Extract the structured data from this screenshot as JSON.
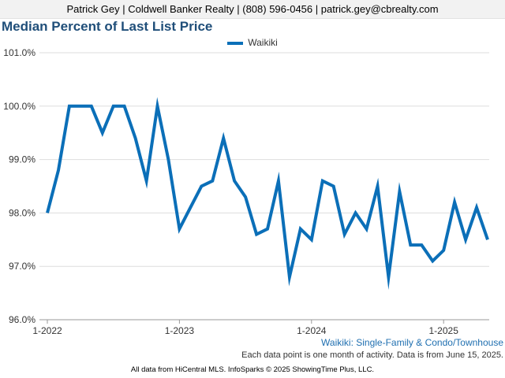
{
  "header": {
    "contact": "Patrick Gey | Coldwell Banker Realty | (808) 596-0456 | patrick.gey@cbrealty.com"
  },
  "chart_data": {
    "type": "line",
    "title": "Median Percent of Last List Price",
    "subtitle": "Waikiki: Single-Family & Condo/Townhouse",
    "xlabel": "",
    "ylabel": "",
    "ylim": [
      96.0,
      101.0
    ],
    "y_ticks": [
      "96.0%",
      "97.0%",
      "98.0%",
      "99.0%",
      "100.0%",
      "101.0%"
    ],
    "x_ticks": [
      "1-2022",
      "1-2023",
      "1-2024",
      "1-2025"
    ],
    "x": [
      "1-2022",
      "2-2022",
      "3-2022",
      "4-2022",
      "5-2022",
      "6-2022",
      "7-2022",
      "8-2022",
      "9-2022",
      "10-2022",
      "11-2022",
      "12-2022",
      "1-2023",
      "2-2023",
      "3-2023",
      "4-2023",
      "5-2023",
      "6-2023",
      "7-2023",
      "8-2023",
      "9-2023",
      "10-2023",
      "11-2023",
      "12-2023",
      "1-2024",
      "2-2024",
      "3-2024",
      "4-2024",
      "5-2024",
      "6-2024",
      "7-2024",
      "8-2024",
      "9-2024",
      "10-2024",
      "11-2024",
      "12-2024",
      "1-2025",
      "2-2025",
      "3-2025",
      "4-2025",
      "5-2025"
    ],
    "series": [
      {
        "name": "Waikiki",
        "color": "#0b6fb8",
        "values": [
          98.0,
          98.8,
          100.0,
          100.0,
          100.0,
          99.5,
          100.0,
          100.0,
          99.4,
          98.6,
          100.0,
          99.0,
          97.7,
          98.1,
          98.5,
          98.6,
          99.4,
          98.6,
          98.3,
          97.6,
          97.7,
          98.6,
          96.8,
          97.7,
          97.5,
          98.6,
          98.5,
          97.6,
          98.0,
          97.7,
          98.5,
          96.8,
          98.4,
          97.4,
          97.4,
          97.1,
          97.3,
          98.2,
          97.5,
          98.1,
          97.5
        ]
      }
    ],
    "grid": true,
    "legend_position": "top-center"
  },
  "notes": {
    "data_point": "Each data point is one month of activity. Data is from June 15, 2025."
  },
  "footer": {
    "source": "All data from HiCentral MLS. InfoSparks © 2025 ShowingTime Plus, LLC."
  }
}
